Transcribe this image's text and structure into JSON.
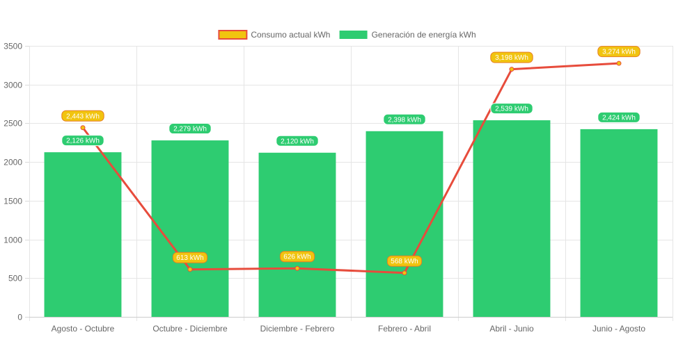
{
  "chart_data": {
    "type": "bar",
    "categories": [
      "Agosto - Octubre",
      "Octubre - Diciembre",
      "Diciembre - Febrero",
      "Febrero - Abril",
      "Abril - Junio",
      "Junio - Agosto"
    ],
    "ylim": [
      0,
      3500
    ],
    "yticks": [
      "0",
      "500",
      "1000",
      "1500",
      "2000",
      "2500",
      "3000",
      "3500"
    ],
    "grid": true,
    "legend_position": "top-center",
    "series": [
      {
        "name": "Consumo actual kWh",
        "type": "line",
        "values": [
          2443,
          613,
          626,
          568,
          3198,
          3274
        ],
        "labels": [
          "2,443 kWh",
          "613 kWh",
          "626 kWh",
          "568 kWh",
          "3,198 kWh",
          "3,274 kWh"
        ],
        "color": "#e74c3c",
        "fill": "#f1c40f"
      },
      {
        "name": "Generación de energía kWh",
        "type": "bar",
        "values": [
          2126,
          2279,
          2120,
          2398,
          2539,
          2424
        ],
        "labels": [
          "2,126 kWh",
          "2,279 kWh",
          "2,120 kWh",
          "2,398 kWh",
          "2,539 kWh",
          "2,424 kWh"
        ],
        "color": "#2ecc71"
      }
    ]
  }
}
